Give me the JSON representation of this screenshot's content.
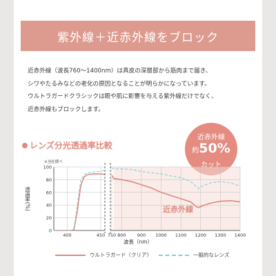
{
  "banner": {
    "title": "紫外線＋近赤外線をブロック"
  },
  "body": {
    "lines": [
      "近赤外線（波長760～1400nm）は真皮の深層部から筋肉まで届き、",
      "シワやたるみなどの老化の原因となることが明らかになっています。",
      "ウルトラガードクラシックは眼や肌に影響を与える紫外線だけでなく、",
      "近赤外線もブロックします。"
    ]
  },
  "section": {
    "title": "レンズ分光透過率比較"
  },
  "badge": {
    "line1": "近赤外線",
    "prefix": "約",
    "value": "50%",
    "line3": "カット"
  },
  "colors": {
    "banner": "#dd9a8e",
    "accent": "#e08a7e",
    "badge": "#e58b7f",
    "ultraguard": "#e0887b",
    "general": "#7ed0dc",
    "nir_fill": "#f6dcd7"
  },
  "chart_data": {
    "type": "line",
    "note": "※当社調べ",
    "ylabel": "透過率(%)",
    "xlabel": "波長（nm）",
    "ylim": [
      0,
      100
    ],
    "yticks": [
      0,
      20,
      40,
      60,
      80,
      100
    ],
    "xticks": [
      400,
      450,
      750,
      800,
      900,
      1000,
      1100,
      1200,
      1300,
      1400
    ],
    "axis_break": [
      460,
      750
    ],
    "region_label": "近赤外線",
    "region": [
      760,
      1400
    ],
    "series": [
      {
        "name": "ウルトラガード〈クリア〉",
        "style": "solid",
        "points": [
          [
            380,
            0
          ],
          [
            405,
            0
          ],
          [
            410,
            1
          ],
          [
            415,
            30
          ],
          [
            420,
            70
          ],
          [
            425,
            84
          ],
          [
            430,
            88
          ],
          [
            440,
            89
          ],
          [
            450,
            89
          ],
          [
            460,
            88
          ],
          [
            750,
            87
          ],
          [
            760,
            82
          ],
          [
            800,
            80
          ],
          [
            850,
            77
          ],
          [
            900,
            72
          ],
          [
            950,
            67
          ],
          [
            1000,
            60
          ],
          [
            1050,
            55
          ],
          [
            1100,
            50
          ],
          [
            1150,
            45
          ],
          [
            1175,
            38
          ],
          [
            1190,
            36
          ],
          [
            1210,
            39
          ],
          [
            1250,
            43
          ],
          [
            1300,
            46
          ],
          [
            1350,
            47
          ],
          [
            1400,
            45
          ]
        ]
      },
      {
        "name": "一般的なレンズ",
        "style": "dashed",
        "points": [
          [
            380,
            0
          ],
          [
            405,
            0
          ],
          [
            410,
            2
          ],
          [
            415,
            40
          ],
          [
            420,
            78
          ],
          [
            425,
            88
          ],
          [
            430,
            91
          ],
          [
            440,
            92
          ],
          [
            450,
            93
          ],
          [
            460,
            96
          ],
          [
            750,
            99
          ],
          [
            760,
            97
          ],
          [
            800,
            97
          ],
          [
            850,
            96
          ],
          [
            900,
            93
          ],
          [
            950,
            91
          ],
          [
            1000,
            89
          ],
          [
            1050,
            86
          ],
          [
            1100,
            83
          ],
          [
            1150,
            77
          ],
          [
            1175,
            70
          ],
          [
            1190,
            66
          ],
          [
            1210,
            70
          ],
          [
            1250,
            75
          ],
          [
            1300,
            77
          ],
          [
            1350,
            75
          ],
          [
            1400,
            70
          ]
        ]
      }
    ]
  }
}
